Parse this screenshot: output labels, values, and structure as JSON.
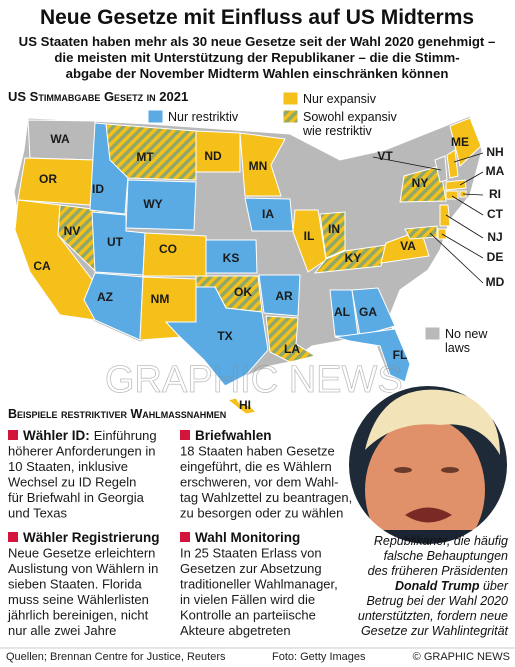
{
  "header": {
    "title": "Neue Gesetze mit Einfluss auf US Midterms",
    "subtitle": [
      "US Staaten haben mehr als 30 neue Gesetze seit der Wahl 2020 genehmigt –",
      "die meisten mit Unterstützung der Republikaner –  die die Stimm-",
      "abgabe der November Midterm Wahlen einschränken können"
    ]
  },
  "map": {
    "title": "US Stimmabgabe Gesetz in 2021",
    "legend": [
      {
        "label": [
          "Nur expansiv"
        ],
        "color": "#f6c01b"
      },
      {
        "label": [
          "Nur restriktiv"
        ],
        "color": "#5aaae4"
      },
      {
        "label": [
          "Sowohl expansiv",
          "wie restriktiv"
        ],
        "color": "#8fa86a"
      },
      {
        "label": [
          "No new",
          "laws"
        ],
        "color": "#b9b9b9"
      }
    ],
    "states": [
      {
        "label": "WA",
        "status": 3
      },
      {
        "label": "OR",
        "status": 0
      },
      {
        "label": "CA",
        "status": 0
      },
      {
        "label": "NV",
        "status": 2
      },
      {
        "label": "ID",
        "status": 1
      },
      {
        "label": "MT",
        "status": 2
      },
      {
        "label": "WY",
        "status": 1
      },
      {
        "label": "UT",
        "status": 1
      },
      {
        "label": "CO",
        "status": 0
      },
      {
        "label": "AZ",
        "status": 1
      },
      {
        "label": "NM",
        "status": 0
      },
      {
        "label": "ND",
        "status": 0
      },
      {
        "label": "KS",
        "status": 1
      },
      {
        "label": "OK",
        "status": 2
      },
      {
        "label": "TX",
        "status": 1
      },
      {
        "label": "MN",
        "status": 0
      },
      {
        "label": "IA",
        "status": 1
      },
      {
        "label": "AR",
        "status": 1
      },
      {
        "label": "LA",
        "status": 2
      },
      {
        "label": "IL",
        "status": 0
      },
      {
        "label": "IN",
        "status": 2
      },
      {
        "label": "KY",
        "status": 2
      },
      {
        "label": "AL",
        "status": 1
      },
      {
        "label": "GA",
        "status": 1
      },
      {
        "label": "FL",
        "status": 1
      },
      {
        "label": "VA",
        "status": 0
      },
      {
        "label": "NY",
        "status": 2
      },
      {
        "label": "ME",
        "status": 0
      },
      {
        "label": "VT",
        "status": 3
      },
      {
        "label": "NH",
        "status": 0
      },
      {
        "label": "MA",
        "status": 0
      },
      {
        "label": "RI",
        "status": 0
      },
      {
        "label": "CT",
        "status": 0
      },
      {
        "label": "NJ",
        "status": 0
      },
      {
        "label": "DE",
        "status": 0
      },
      {
        "label": "MD",
        "status": 2
      },
      {
        "label": "HI",
        "status": 0
      }
    ]
  },
  "watermark": "GRAPHIC NEWS",
  "examples": {
    "title": "Beispiele restriktiver Wahlmassnahmen",
    "items": [
      {
        "title": "Wähler ID:",
        "lines": [
          "Einführung",
          "höherer Anforderungen in",
          "10 Staaten, inklusive",
          "Wechsel zu ID Regeln",
          "für Briefwahl in Georgia",
          "und Texas"
        ]
      },
      {
        "title": "Briefwahlen",
        "lines": [
          "18 Staaten haben Gesetze",
          "eingeführt, die es Wählern",
          "erschweren, vor dem Wahl-",
          "tag Wahlzettel zu beantragen,",
          "zu besorgen oder zu wählen"
        ]
      },
      {
        "title": "Wähler Registrierung",
        "lines": [
          "Neue Gesetze erleichtern",
          "Auslistung von Wählern in",
          "sieben Staaten. Florida",
          "muss seine Wählerlisten",
          "jährlich bereinigen, nicht",
          "nur alle zwei Jahre"
        ]
      },
      {
        "title": "Wahl Monitoring",
        "lines": [
          "In 25 Staaten Erlass von",
          "Gesetzen zur Absetzung",
          "traditioneller Wahlmanager,",
          "in vielen Fällen wird die",
          "Kontrolle an parteiische",
          "Akteure abgetreten"
        ]
      }
    ]
  },
  "caption": {
    "before": [
      "Republikaner, die häufig",
      "falsche Behauptungen",
      "des früheren Präsidenten"
    ],
    "name": "Donald Trump",
    "name_rest": " über",
    "after": [
      "Betrug bei der Wahl 2020",
      "unterstützten, fordern neue",
      "Gesetze zur Wahlintegrität"
    ]
  },
  "footer": {
    "sources": "Quellen;  Brennan Centre for Justice, Reuters",
    "photo": "Foto: Getty Images",
    "copyright": "© GRAPHIC NEWS"
  }
}
